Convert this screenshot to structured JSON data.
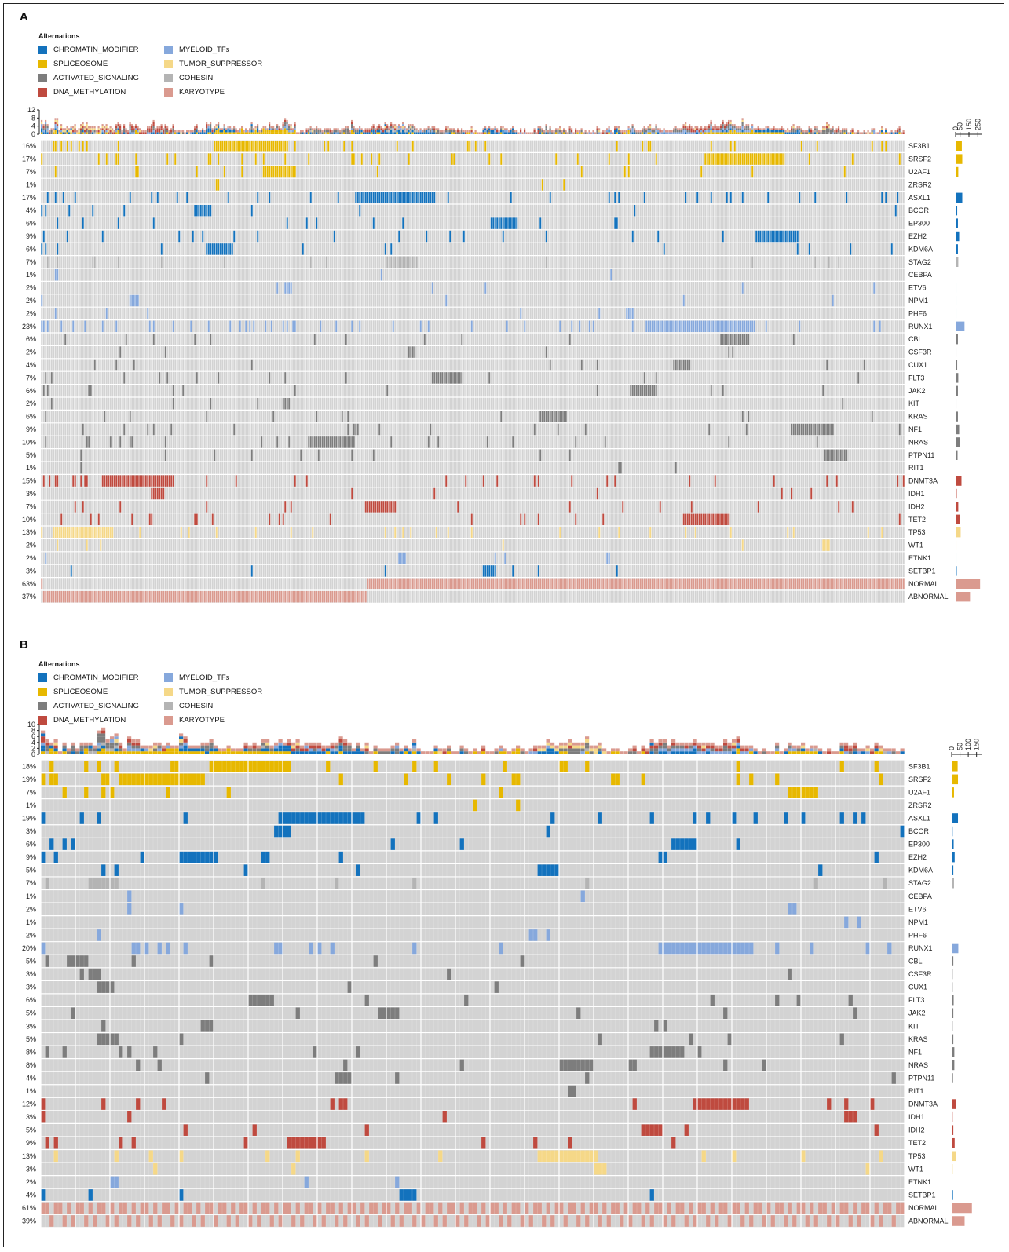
{
  "legend_colors": {
    "CHROMATIN_MODIFIER": "#1372bd",
    "SPLICEOSOME": "#e7b800",
    "ACTIVATED_SIGNALING": "#7d7d7d",
    "DNA_METHYLATION": "#bf4a3f",
    "MYELOID_TFs": "#86a8dc",
    "TUMOR_SUPPRESSOR": "#f5d888",
    "COHESIN": "#b4b4b4",
    "KARYOTYPE": "#da9a8f"
  },
  "background_color": "#d3d3d3",
  "chart_data": [
    {
      "type": "heatmap",
      "panel_label": "A",
      "legend_title": "Alternations",
      "legend": [
        "CHROMATIN_MODIFIER",
        "SPLICEOSOME",
        "ACTIVATED_SIGNALING",
        "DNA_METHYLATION",
        "MYELOID_TFs",
        "TUMOR_SUPPRESSOR",
        "COHESIN",
        "KARYOTYPE"
      ],
      "top_axis_ticks": [
        "12",
        "8",
        "4",
        "0"
      ],
      "top_axis_range": [
        0,
        12
      ],
      "right_axis_ticks": [
        "0",
        "50",
        "150",
        "250"
      ],
      "right_axis_range": [
        0,
        300
      ],
      "rows": [
        {
          "gene": "SF3B1",
          "pct": "16%",
          "group": "SPLICEOSOME",
          "count": 70
        },
        {
          "gene": "SRSF2",
          "pct": "17%",
          "group": "SPLICEOSOME",
          "count": 75
        },
        {
          "gene": "U2AF1",
          "pct": "7%",
          "group": "SPLICEOSOME",
          "count": 30
        },
        {
          "gene": "ZRSR2",
          "pct": "1%",
          "group": "SPLICEOSOME",
          "count": 4
        },
        {
          "gene": "ASXL1",
          "pct": "17%",
          "group": "CHROMATIN_MODIFIER",
          "count": 75
        },
        {
          "gene": "BCOR",
          "pct": "4%",
          "group": "CHROMATIN_MODIFIER",
          "count": 18
        },
        {
          "gene": "EP300",
          "pct": "6%",
          "group": "CHROMATIN_MODIFIER",
          "count": 26
        },
        {
          "gene": "EZH2",
          "pct": "9%",
          "group": "CHROMATIN_MODIFIER",
          "count": 40
        },
        {
          "gene": "KDM6A",
          "pct": "6%",
          "group": "CHROMATIN_MODIFIER",
          "count": 26
        },
        {
          "gene": "STAG2",
          "pct": "7%",
          "group": "COHESIN",
          "count": 30
        },
        {
          "gene": "CEBPA",
          "pct": "1%",
          "group": "MYELOID_TFs",
          "count": 4
        },
        {
          "gene": "ETV6",
          "pct": "2%",
          "group": "MYELOID_TFs",
          "count": 9
        },
        {
          "gene": "NPM1",
          "pct": "2%",
          "group": "MYELOID_TFs",
          "count": 9
        },
        {
          "gene": "PHF6",
          "pct": "2%",
          "group": "MYELOID_TFs",
          "count": 9
        },
        {
          "gene": "RUNX1",
          "pct": "23%",
          "group": "MYELOID_TFs",
          "count": 100
        },
        {
          "gene": "CBL",
          "pct": "6%",
          "group": "ACTIVATED_SIGNALING",
          "count": 26
        },
        {
          "gene": "CSF3R",
          "pct": "2%",
          "group": "ACTIVATED_SIGNALING",
          "count": 9
        },
        {
          "gene": "CUX1",
          "pct": "4%",
          "group": "ACTIVATED_SIGNALING",
          "count": 18
        },
        {
          "gene": "FLT3",
          "pct": "7%",
          "group": "ACTIVATED_SIGNALING",
          "count": 30
        },
        {
          "gene": "JAK2",
          "pct": "6%",
          "group": "ACTIVATED_SIGNALING",
          "count": 26
        },
        {
          "gene": "KIT",
          "pct": "2%",
          "group": "ACTIVATED_SIGNALING",
          "count": 9
        },
        {
          "gene": "KRAS",
          "pct": "6%",
          "group": "ACTIVATED_SIGNALING",
          "count": 26
        },
        {
          "gene": "NF1",
          "pct": "9%",
          "group": "ACTIVATED_SIGNALING",
          "count": 40
        },
        {
          "gene": "NRAS",
          "pct": "10%",
          "group": "ACTIVATED_SIGNALING",
          "count": 44
        },
        {
          "gene": "PTPN11",
          "pct": "5%",
          "group": "ACTIVATED_SIGNALING",
          "count": 22
        },
        {
          "gene": "RIT1",
          "pct": "1%",
          "group": "ACTIVATED_SIGNALING",
          "count": 4
        },
        {
          "gene": "DNMT3A",
          "pct": "15%",
          "group": "DNA_METHYLATION",
          "count": 66
        },
        {
          "gene": "IDH1",
          "pct": "3%",
          "group": "DNA_METHYLATION",
          "count": 13
        },
        {
          "gene": "IDH2",
          "pct": "7%",
          "group": "DNA_METHYLATION",
          "count": 30
        },
        {
          "gene": "TET2",
          "pct": "10%",
          "group": "DNA_METHYLATION",
          "count": 44
        },
        {
          "gene": "TP53",
          "pct": "13%",
          "group": "TUMOR_SUPPRESSOR",
          "count": 57
        },
        {
          "gene": "WT1",
          "pct": "2%",
          "group": "TUMOR_SUPPRESSOR",
          "count": 9
        },
        {
          "gene": "ETNK1",
          "pct": "2%",
          "group": "MYELOID_TFs",
          "count": 9
        },
        {
          "gene": "SETBP1",
          "pct": "3%",
          "group": "CHROMATIN_MODIFIER",
          "count": 13
        },
        {
          "gene": "NORMAL",
          "pct": "63%",
          "group": "KARYOTYPE",
          "count": 275
        },
        {
          "gene": "ABNORMAL",
          "pct": "37%",
          "group": "KARYOTYPE",
          "count": 162
        }
      ]
    },
    {
      "type": "heatmap",
      "panel_label": "B",
      "legend_title": "Alternations",
      "legend": [
        "CHROMATIN_MODIFIER",
        "SPLICEOSOME",
        "ACTIVATED_SIGNALING",
        "DNA_METHYLATION",
        "MYELOID_TFs",
        "TUMOR_SUPPRESSOR",
        "COHESIN",
        "KARYOTYPE"
      ],
      "top_axis_ticks": [
        "10",
        "8",
        "6",
        "4",
        "2",
        "0"
      ],
      "top_axis_range": [
        0,
        10
      ],
      "right_axis_ticks": [
        "0",
        "50",
        "100",
        "150"
      ],
      "right_axis_range": [
        0,
        180
      ],
      "rows": [
        {
          "gene": "SF3B1",
          "pct": "18%",
          "group": "SPLICEOSOME",
          "count": 36
        },
        {
          "gene": "SRSF2",
          "pct": "19%",
          "group": "SPLICEOSOME",
          "count": 38
        },
        {
          "gene": "U2AF1",
          "pct": "7%",
          "group": "SPLICEOSOME",
          "count": 14
        },
        {
          "gene": "ZRSR2",
          "pct": "1%",
          "group": "SPLICEOSOME",
          "count": 2
        },
        {
          "gene": "ASXL1",
          "pct": "19%",
          "group": "CHROMATIN_MODIFIER",
          "count": 38
        },
        {
          "gene": "BCOR",
          "pct": "3%",
          "group": "CHROMATIN_MODIFIER",
          "count": 6
        },
        {
          "gene": "EP300",
          "pct": "6%",
          "group": "CHROMATIN_MODIFIER",
          "count": 12
        },
        {
          "gene": "EZH2",
          "pct": "9%",
          "group": "CHROMATIN_MODIFIER",
          "count": 18
        },
        {
          "gene": "KDM6A",
          "pct": "5%",
          "group": "CHROMATIN_MODIFIER",
          "count": 10
        },
        {
          "gene": "STAG2",
          "pct": "7%",
          "group": "COHESIN",
          "count": 14
        },
        {
          "gene": "CEBPA",
          "pct": "1%",
          "group": "MYELOID_TFs",
          "count": 2
        },
        {
          "gene": "ETV6",
          "pct": "2%",
          "group": "MYELOID_TFs",
          "count": 4
        },
        {
          "gene": "NPM1",
          "pct": "1%",
          "group": "MYELOID_TFs",
          "count": 2
        },
        {
          "gene": "PHF6",
          "pct": "2%",
          "group": "MYELOID_TFs",
          "count": 4
        },
        {
          "gene": "RUNX1",
          "pct": "20%",
          "group": "MYELOID_TFs",
          "count": 40
        },
        {
          "gene": "CBL",
          "pct": "5%",
          "group": "ACTIVATED_SIGNALING",
          "count": 10
        },
        {
          "gene": "CSF3R",
          "pct": "3%",
          "group": "ACTIVATED_SIGNALING",
          "count": 6
        },
        {
          "gene": "CUX1",
          "pct": "3%",
          "group": "ACTIVATED_SIGNALING",
          "count": 6
        },
        {
          "gene": "FLT3",
          "pct": "6%",
          "group": "ACTIVATED_SIGNALING",
          "count": 12
        },
        {
          "gene": "JAK2",
          "pct": "5%",
          "group": "ACTIVATED_SIGNALING",
          "count": 10
        },
        {
          "gene": "KIT",
          "pct": "3%",
          "group": "ACTIVATED_SIGNALING",
          "count": 6
        },
        {
          "gene": "KRAS",
          "pct": "5%",
          "group": "ACTIVATED_SIGNALING",
          "count": 10
        },
        {
          "gene": "NF1",
          "pct": "8%",
          "group": "ACTIVATED_SIGNALING",
          "count": 16
        },
        {
          "gene": "NRAS",
          "pct": "8%",
          "group": "ACTIVATED_SIGNALING",
          "count": 16
        },
        {
          "gene": "PTPN11",
          "pct": "4%",
          "group": "ACTIVATED_SIGNALING",
          "count": 8
        },
        {
          "gene": "RIT1",
          "pct": "1%",
          "group": "ACTIVATED_SIGNALING",
          "count": 2
        },
        {
          "gene": "DNMT3A",
          "pct": "12%",
          "group": "DNA_METHYLATION",
          "count": 24
        },
        {
          "gene": "IDH1",
          "pct": "3%",
          "group": "DNA_METHYLATION",
          "count": 6
        },
        {
          "gene": "IDH2",
          "pct": "5%",
          "group": "DNA_METHYLATION",
          "count": 10
        },
        {
          "gene": "TET2",
          "pct": "9%",
          "group": "DNA_METHYLATION",
          "count": 18
        },
        {
          "gene": "TP53",
          "pct": "13%",
          "group": "TUMOR_SUPPRESSOR",
          "count": 26
        },
        {
          "gene": "WT1",
          "pct": "3%",
          "group": "TUMOR_SUPPRESSOR",
          "count": 6
        },
        {
          "gene": "ETNK1",
          "pct": "2%",
          "group": "MYELOID_TFs",
          "count": 4
        },
        {
          "gene": "SETBP1",
          "pct": "4%",
          "group": "CHROMATIN_MODIFIER",
          "count": 8
        },
        {
          "gene": "NORMAL",
          "pct": "61%",
          "group": "KARYOTYPE",
          "count": 122
        },
        {
          "gene": "ABNORMAL",
          "pct": "39%",
          "group": "KARYOTYPE",
          "count": 78
        }
      ]
    }
  ]
}
